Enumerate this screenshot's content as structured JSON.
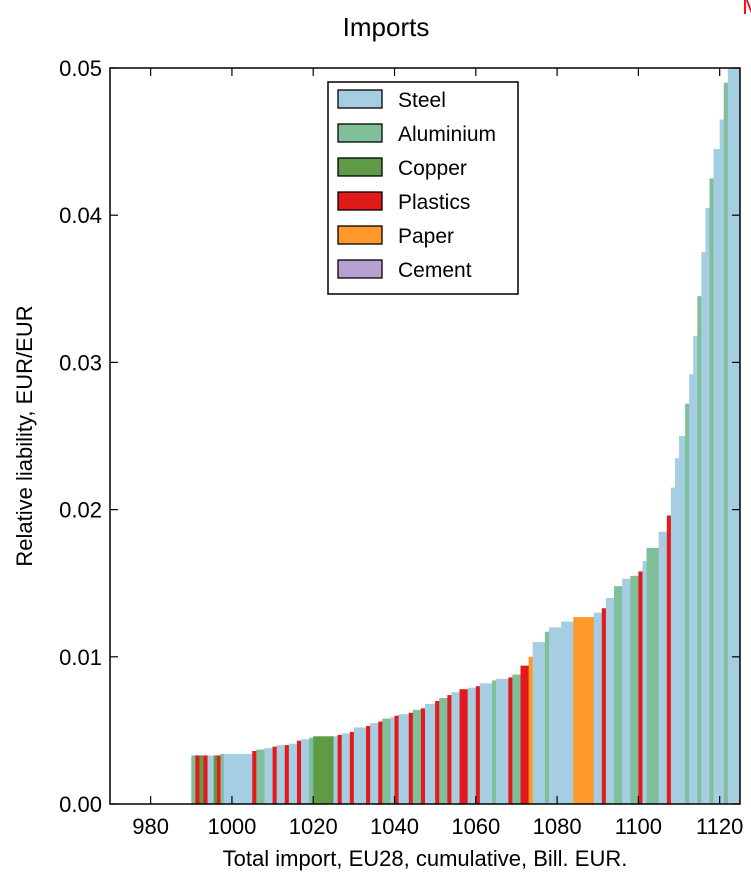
{
  "chart_data": {
    "type": "bar",
    "title": "Imports",
    "corner_mark": "M",
    "xlabel": "Total import, EU28, cumulative, Bill. EUR.",
    "ylabel": "Relative liability, EUR/EUR",
    "xlim": [
      970,
      1125
    ],
    "ylim": [
      0,
      0.05
    ],
    "xticks": [
      980,
      1000,
      1020,
      1040,
      1060,
      1080,
      1100,
      1120
    ],
    "xtick_labels": [
      "980",
      "1000",
      "1020",
      "1040",
      "1060",
      "1080",
      "1100",
      "1120"
    ],
    "yticks": [
      0.0,
      0.01,
      0.02,
      0.03,
      0.04,
      0.05
    ],
    "ytick_labels": [
      "0.00",
      "0.01",
      "0.02",
      "0.03",
      "0.04",
      "0.05"
    ],
    "grid": false,
    "legend_position": "top-center",
    "legend": [
      {
        "name": "Steel",
        "color": "#a6cee3"
      },
      {
        "name": "Aluminium",
        "color": "#7fbf9a"
      },
      {
        "name": "Copper",
        "color": "#5f9a46"
      },
      {
        "name": "Plastics",
        "color": "#e31a1c"
      },
      {
        "name": "Paper",
        "color": "#ff9a2a"
      },
      {
        "name": "Cement",
        "color": "#b6a0d0"
      }
    ],
    "bars": [
      {
        "x0": 990.0,
        "x1": 991.0,
        "y": 0.0033,
        "color": "#7fbf9a"
      },
      {
        "x0": 991.0,
        "x1": 992.0,
        "y": 0.0033,
        "color": "#e31a1c"
      },
      {
        "x0": 992.0,
        "x1": 993.0,
        "y": 0.0033,
        "color": "#5f9a46"
      },
      {
        "x0": 993.0,
        "x1": 994.0,
        "y": 0.0033,
        "color": "#e31a1c"
      },
      {
        "x0": 994.0,
        "x1": 995.5,
        "y": 0.0033,
        "color": "#a6cee3"
      },
      {
        "x0": 995.5,
        "x1": 996.3,
        "y": 0.0033,
        "color": "#5f9a46"
      },
      {
        "x0": 996.3,
        "x1": 997.2,
        "y": 0.0033,
        "color": "#e31a1c"
      },
      {
        "x0": 997.2,
        "x1": 998.0,
        "y": 0.0034,
        "color": "#7fbf9a"
      },
      {
        "x0": 998.0,
        "x1": 1005.0,
        "y": 0.0034,
        "color": "#a6cee3"
      },
      {
        "x0": 1005.0,
        "x1": 1006.0,
        "y": 0.0036,
        "color": "#e31a1c"
      },
      {
        "x0": 1006.0,
        "x1": 1008.0,
        "y": 0.0037,
        "color": "#7fbf9a"
      },
      {
        "x0": 1008.0,
        "x1": 1010.0,
        "y": 0.0038,
        "color": "#a6cee3"
      },
      {
        "x0": 1010.0,
        "x1": 1011.0,
        "y": 0.0039,
        "color": "#e31a1c"
      },
      {
        "x0": 1011.0,
        "x1": 1013.0,
        "y": 0.004,
        "color": "#a6cee3"
      },
      {
        "x0": 1013.0,
        "x1": 1014.0,
        "y": 0.004,
        "color": "#e31a1c"
      },
      {
        "x0": 1014.0,
        "x1": 1016.0,
        "y": 0.0041,
        "color": "#a6cee3"
      },
      {
        "x0": 1016.0,
        "x1": 1017.0,
        "y": 0.0043,
        "color": "#e31a1c"
      },
      {
        "x0": 1017.0,
        "x1": 1019.0,
        "y": 0.0044,
        "color": "#a6cee3"
      },
      {
        "x0": 1019.0,
        "x1": 1020.0,
        "y": 0.0045,
        "color": "#7fbf9a"
      },
      {
        "x0": 1020.0,
        "x1": 1025.0,
        "y": 0.0046,
        "color": "#5f9a46"
      },
      {
        "x0": 1025.0,
        "x1": 1026.0,
        "y": 0.0046,
        "color": "#a6cee3"
      },
      {
        "x0": 1026.0,
        "x1": 1027.0,
        "y": 0.0047,
        "color": "#e31a1c"
      },
      {
        "x0": 1027.0,
        "x1": 1029.0,
        "y": 0.0048,
        "color": "#a6cee3"
      },
      {
        "x0": 1029.0,
        "x1": 1030.0,
        "y": 0.0049,
        "color": "#e31a1c"
      },
      {
        "x0": 1030.0,
        "x1": 1033.0,
        "y": 0.0052,
        "color": "#a6cee3"
      },
      {
        "x0": 1033.0,
        "x1": 1034.0,
        "y": 0.0053,
        "color": "#e31a1c"
      },
      {
        "x0": 1034.0,
        "x1": 1036.0,
        "y": 0.0055,
        "color": "#a6cee3"
      },
      {
        "x0": 1036.0,
        "x1": 1037.0,
        "y": 0.0056,
        "color": "#e31a1c"
      },
      {
        "x0": 1037.0,
        "x1": 1039.0,
        "y": 0.0058,
        "color": "#7fbf9a"
      },
      {
        "x0": 1039.0,
        "x1": 1040.0,
        "y": 0.0059,
        "color": "#a6cee3"
      },
      {
        "x0": 1040.0,
        "x1": 1041.0,
        "y": 0.006,
        "color": "#e31a1c"
      },
      {
        "x0": 1041.0,
        "x1": 1043.5,
        "y": 0.0061,
        "color": "#a6cee3"
      },
      {
        "x0": 1043.5,
        "x1": 1044.5,
        "y": 0.0062,
        "color": "#e31a1c"
      },
      {
        "x0": 1044.5,
        "x1": 1046.5,
        "y": 0.0064,
        "color": "#7fbf9a"
      },
      {
        "x0": 1046.5,
        "x1": 1047.5,
        "y": 0.0065,
        "color": "#e31a1c"
      },
      {
        "x0": 1047.5,
        "x1": 1050.0,
        "y": 0.0068,
        "color": "#a6cee3"
      },
      {
        "x0": 1050.0,
        "x1": 1051.0,
        "y": 0.007,
        "color": "#e31a1c"
      },
      {
        "x0": 1051.0,
        "x1": 1053.0,
        "y": 0.0072,
        "color": "#7fbf9a"
      },
      {
        "x0": 1053.0,
        "x1": 1054.0,
        "y": 0.0074,
        "color": "#e31a1c"
      },
      {
        "x0": 1054.0,
        "x1": 1056.0,
        "y": 0.0076,
        "color": "#a6cee3"
      },
      {
        "x0": 1056.0,
        "x1": 1058.0,
        "y": 0.0078,
        "color": "#e31a1c"
      },
      {
        "x0": 1058.0,
        "x1": 1060.0,
        "y": 0.0079,
        "color": "#a6cee3"
      },
      {
        "x0": 1060.0,
        "x1": 1061.0,
        "y": 0.008,
        "color": "#e31a1c"
      },
      {
        "x0": 1061.0,
        "x1": 1064.0,
        "y": 0.0082,
        "color": "#a6cee3"
      },
      {
        "x0": 1064.0,
        "x1": 1065.0,
        "y": 0.0084,
        "color": "#7fbf9a"
      },
      {
        "x0": 1065.0,
        "x1": 1068.0,
        "y": 0.0085,
        "color": "#a6cee3"
      },
      {
        "x0": 1068.0,
        "x1": 1069.0,
        "y": 0.0086,
        "color": "#e31a1c"
      },
      {
        "x0": 1069.0,
        "x1": 1071.0,
        "y": 0.0088,
        "color": "#7fbf9a"
      },
      {
        "x0": 1071.0,
        "x1": 1073.0,
        "y": 0.0094,
        "color": "#e31a1c"
      },
      {
        "x0": 1073.0,
        "x1": 1074.0,
        "y": 0.01,
        "color": "#ff9a2a"
      },
      {
        "x0": 1074.0,
        "x1": 1077.0,
        "y": 0.011,
        "color": "#a6cee3"
      },
      {
        "x0": 1077.0,
        "x1": 1078.0,
        "y": 0.0117,
        "color": "#7fbf9a"
      },
      {
        "x0": 1078.0,
        "x1": 1081.0,
        "y": 0.012,
        "color": "#a6cee3"
      },
      {
        "x0": 1081.0,
        "x1": 1084.0,
        "y": 0.0124,
        "color": "#a6cee3"
      },
      {
        "x0": 1084.0,
        "x1": 1089.0,
        "y": 0.0127,
        "color": "#ff9a2a"
      },
      {
        "x0": 1089.0,
        "x1": 1091.0,
        "y": 0.013,
        "color": "#a6cee3"
      },
      {
        "x0": 1091.0,
        "x1": 1092.0,
        "y": 0.0133,
        "color": "#e31a1c"
      },
      {
        "x0": 1092.0,
        "x1": 1094.0,
        "y": 0.014,
        "color": "#a6cee3"
      },
      {
        "x0": 1094.0,
        "x1": 1096.0,
        "y": 0.0148,
        "color": "#7fbf9a"
      },
      {
        "x0": 1096.0,
        "x1": 1098.0,
        "y": 0.0153,
        "color": "#a6cee3"
      },
      {
        "x0": 1098.0,
        "x1": 1100.0,
        "y": 0.0155,
        "color": "#7fbf9a"
      },
      {
        "x0": 1100.0,
        "x1": 1101.0,
        "y": 0.0158,
        "color": "#e31a1c"
      },
      {
        "x0": 1101.0,
        "x1": 1102.0,
        "y": 0.0165,
        "color": "#a6cee3"
      },
      {
        "x0": 1102.0,
        "x1": 1105.0,
        "y": 0.0174,
        "color": "#7fbf9a"
      },
      {
        "x0": 1105.0,
        "x1": 1107.0,
        "y": 0.0185,
        "color": "#a6cee3"
      },
      {
        "x0": 1107.0,
        "x1": 1108.0,
        "y": 0.0196,
        "color": "#e31a1c"
      },
      {
        "x0": 1108.0,
        "x1": 1109.0,
        "y": 0.0215,
        "color": "#a6cee3"
      },
      {
        "x0": 1109.0,
        "x1": 1110.0,
        "y": 0.0235,
        "color": "#a6cee3"
      },
      {
        "x0": 1110.0,
        "x1": 1111.5,
        "y": 0.025,
        "color": "#a6cee3"
      },
      {
        "x0": 1111.5,
        "x1": 1112.5,
        "y": 0.0272,
        "color": "#7fbf9a"
      },
      {
        "x0": 1112.5,
        "x1": 1113.5,
        "y": 0.0292,
        "color": "#a6cee3"
      },
      {
        "x0": 1113.5,
        "x1": 1114.5,
        "y": 0.0318,
        "color": "#a6cee3"
      },
      {
        "x0": 1114.5,
        "x1": 1115.5,
        "y": 0.0345,
        "color": "#7fbf9a"
      },
      {
        "x0": 1115.5,
        "x1": 1116.5,
        "y": 0.0375,
        "color": "#a6cee3"
      },
      {
        "x0": 1116.5,
        "x1": 1117.5,
        "y": 0.0405,
        "color": "#a6cee3"
      },
      {
        "x0": 1117.5,
        "x1": 1118.5,
        "y": 0.0425,
        "color": "#7fbf9a"
      },
      {
        "x0": 1118.5,
        "x1": 1120.0,
        "y": 0.0445,
        "color": "#a6cee3"
      },
      {
        "x0": 1120.0,
        "x1": 1121.0,
        "y": 0.0465,
        "color": "#a6cee3"
      },
      {
        "x0": 1121.0,
        "x1": 1122.0,
        "y": 0.049,
        "color": "#7fbf9a"
      },
      {
        "x0": 1122.0,
        "x1": 1125.0,
        "y": 0.05,
        "color": "#a6cee3"
      }
    ]
  }
}
